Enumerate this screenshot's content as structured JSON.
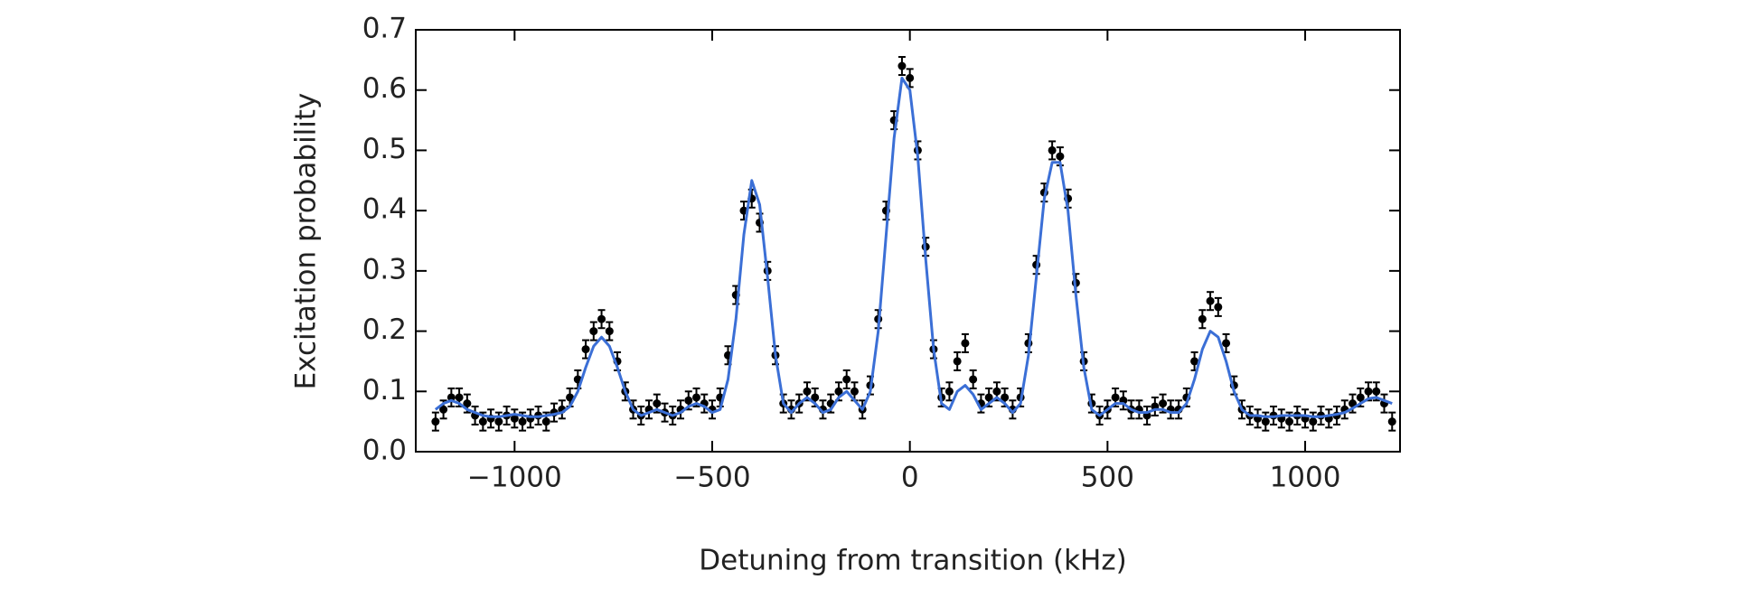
{
  "chart_data": {
    "type": "scatter",
    "x_label": "Detuning from transition (kHz)",
    "y_label": "Excitation probability",
    "xlim": [
      -1250,
      1240
    ],
    "ylim": [
      0,
      0.7
    ],
    "xticks": [
      {
        "value": -1000,
        "label": "−1000"
      },
      {
        "value": -500,
        "label": "−500"
      },
      0,
      500,
      1000
    ],
    "yticks": [
      {
        "value": 0,
        "label": "0.0"
      },
      0.1,
      0.2,
      0.3,
      0.4,
      0.5,
      0.6,
      0.7
    ],
    "x": [
      -1200,
      -1180,
      -1160,
      -1140,
      -1120,
      -1100,
      -1080,
      -1060,
      -1040,
      -1020,
      -1000,
      -980,
      -960,
      -940,
      -920,
      -900,
      -880,
      -860,
      -840,
      -820,
      -800,
      -780,
      -760,
      -740,
      -720,
      -700,
      -680,
      -660,
      -640,
      -620,
      -600,
      -580,
      -560,
      -540,
      -520,
      -500,
      -480,
      -460,
      -440,
      -420,
      -400,
      -380,
      -360,
      -340,
      -320,
      -300,
      -280,
      -260,
      -240,
      -220,
      -200,
      -180,
      -160,
      -140,
      -120,
      -100,
      -80,
      -60,
      -40,
      -20,
      0,
      20,
      40,
      60,
      80,
      100,
      120,
      140,
      160,
      180,
      200,
      220,
      240,
      260,
      280,
      300,
      320,
      340,
      360,
      380,
      400,
      420,
      440,
      460,
      480,
      500,
      520,
      540,
      560,
      580,
      600,
      620,
      640,
      660,
      680,
      700,
      720,
      740,
      760,
      780,
      800,
      820,
      840,
      860,
      880,
      900,
      920,
      940,
      960,
      980,
      1000,
      1020,
      1040,
      1060,
      1080,
      1100,
      1120,
      1140,
      1160,
      1180,
      1200,
      1220
    ],
    "series": [
      {
        "type": "errorbar",
        "color": "#000000",
        "values": [
          0.05,
          0.07,
          0.09,
          0.09,
          0.08,
          0.06,
          0.05,
          0.055,
          0.05,
          0.06,
          0.055,
          0.05,
          0.055,
          0.06,
          0.05,
          0.065,
          0.07,
          0.09,
          0.12,
          0.17,
          0.2,
          0.22,
          0.2,
          0.15,
          0.1,
          0.07,
          0.06,
          0.07,
          0.08,
          0.065,
          0.06,
          0.07,
          0.085,
          0.09,
          0.08,
          0.07,
          0.09,
          0.16,
          0.26,
          0.4,
          0.42,
          0.38,
          0.3,
          0.16,
          0.08,
          0.07,
          0.08,
          0.1,
          0.09,
          0.07,
          0.08,
          0.1,
          0.12,
          0.1,
          0.07,
          0.11,
          0.22,
          0.4,
          0.55,
          0.64,
          0.62,
          0.5,
          0.34,
          0.17,
          0.09,
          0.1,
          0.15,
          0.18,
          0.12,
          0.08,
          0.09,
          0.1,
          0.09,
          0.07,
          0.09,
          0.18,
          0.31,
          0.43,
          0.5,
          0.49,
          0.42,
          0.28,
          0.15,
          0.08,
          0.06,
          0.07,
          0.09,
          0.085,
          0.07,
          0.07,
          0.06,
          0.075,
          0.08,
          0.07,
          0.07,
          0.09,
          0.15,
          0.22,
          0.25,
          0.24,
          0.18,
          0.11,
          0.07,
          0.06,
          0.055,
          0.05,
          0.06,
          0.055,
          0.05,
          0.06,
          0.055,
          0.05,
          0.06,
          0.055,
          0.06,
          0.07,
          0.08,
          0.09,
          0.1,
          0.1,
          0.08,
          0.05
        ],
        "errors": [
          0.015,
          0.015,
          0.015,
          0.015,
          0.015,
          0.015,
          0.015,
          0.015,
          0.015,
          0.015,
          0.015,
          0.015,
          0.015,
          0.015,
          0.015,
          0.015,
          0.015,
          0.015,
          0.015,
          0.015,
          0.015,
          0.015,
          0.015,
          0.015,
          0.015,
          0.015,
          0.015,
          0.015,
          0.015,
          0.015,
          0.015,
          0.015,
          0.015,
          0.015,
          0.015,
          0.015,
          0.015,
          0.015,
          0.015,
          0.015,
          0.015,
          0.015,
          0.015,
          0.015,
          0.015,
          0.015,
          0.015,
          0.015,
          0.015,
          0.015,
          0.015,
          0.015,
          0.015,
          0.015,
          0.015,
          0.015,
          0.015,
          0.015,
          0.015,
          0.015,
          0.015,
          0.015,
          0.015,
          0.015,
          0.015,
          0.015,
          0.015,
          0.015,
          0.015,
          0.015,
          0.015,
          0.015,
          0.015,
          0.015,
          0.015,
          0.015,
          0.015,
          0.015,
          0.015,
          0.015,
          0.015,
          0.015,
          0.015,
          0.015,
          0.015,
          0.015,
          0.015,
          0.015,
          0.015,
          0.015,
          0.015,
          0.015,
          0.015,
          0.015,
          0.015,
          0.015,
          0.015,
          0.015,
          0.015,
          0.015,
          0.015,
          0.015,
          0.015,
          0.015,
          0.015,
          0.015,
          0.015,
          0.015,
          0.015,
          0.015,
          0.015,
          0.015,
          0.015,
          0.015,
          0.015,
          0.015,
          0.015,
          0.015,
          0.015,
          0.015,
          0.015,
          0.015
        ]
      },
      {
        "type": "line",
        "color": "#3b6fd6",
        "values": [
          0.07,
          0.08,
          0.085,
          0.08,
          0.07,
          0.065,
          0.06,
          0.058,
          0.058,
          0.06,
          0.062,
          0.06,
          0.058,
          0.058,
          0.06,
          0.062,
          0.065,
          0.075,
          0.1,
          0.14,
          0.175,
          0.19,
          0.175,
          0.14,
          0.1,
          0.07,
          0.06,
          0.065,
          0.07,
          0.065,
          0.06,
          0.065,
          0.075,
          0.08,
          0.075,
          0.065,
          0.07,
          0.12,
          0.22,
          0.36,
          0.45,
          0.41,
          0.29,
          0.16,
          0.08,
          0.065,
          0.08,
          0.09,
          0.08,
          0.065,
          0.07,
          0.09,
          0.1,
          0.085,
          0.07,
          0.1,
          0.2,
          0.36,
          0.52,
          0.62,
          0.6,
          0.49,
          0.32,
          0.17,
          0.08,
          0.07,
          0.1,
          0.11,
          0.095,
          0.07,
          0.08,
          0.09,
          0.08,
          0.065,
          0.08,
          0.16,
          0.29,
          0.42,
          0.48,
          0.48,
          0.4,
          0.26,
          0.14,
          0.07,
          0.06,
          0.07,
          0.08,
          0.08,
          0.07,
          0.065,
          0.065,
          0.07,
          0.07,
          0.065,
          0.065,
          0.08,
          0.12,
          0.17,
          0.2,
          0.19,
          0.15,
          0.1,
          0.07,
          0.06,
          0.06,
          0.058,
          0.058,
          0.06,
          0.06,
          0.06,
          0.06,
          0.058,
          0.058,
          0.06,
          0.062,
          0.065,
          0.072,
          0.08,
          0.088,
          0.09,
          0.085,
          0.08
        ]
      }
    ]
  }
}
